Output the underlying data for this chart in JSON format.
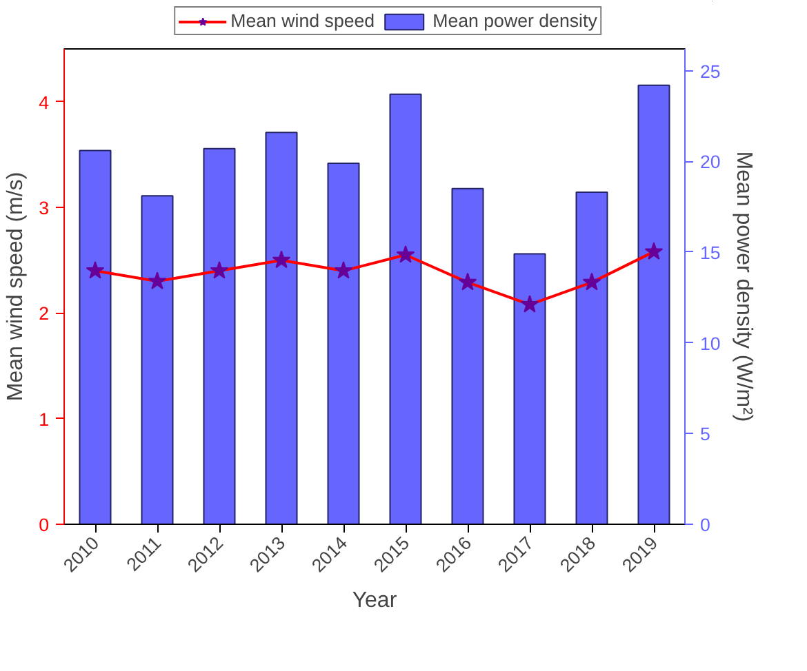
{
  "chart_data": {
    "type": "bar",
    "categories": [
      "2010",
      "2011",
      "2012",
      "2013",
      "2014",
      "2015",
      "2016",
      "2017",
      "2018",
      "2019"
    ],
    "xlabel": "Year",
    "ylabel": "Mean wind speed (m/s)",
    "y2label": "Mean power density (W/m²)",
    "ylim": [
      0,
      4.5
    ],
    "yticks": [
      0,
      1,
      2,
      3,
      4
    ],
    "y2lim": [
      0,
      26.2
    ],
    "y2ticks": [
      0,
      5,
      10,
      15,
      20,
      25
    ],
    "legend": "top",
    "grid": false,
    "series": [
      {
        "name": "Mean wind speed",
        "type": "line",
        "color": "#ff0000",
        "marker": "star",
        "line_style": "solid",
        "values": [
          2.4,
          2.3,
          2.4,
          2.5,
          2.4,
          2.55,
          2.29,
          2.08,
          2.29,
          2.58
        ]
      },
      {
        "name": "Mean power density",
        "axis": "y2",
        "color": "#6666ff",
        "values": [
          20.6,
          18.1,
          20.7,
          21.6,
          19.9,
          23.7,
          18.5,
          14.9,
          18.3,
          24.2
        ]
      }
    ]
  }
}
